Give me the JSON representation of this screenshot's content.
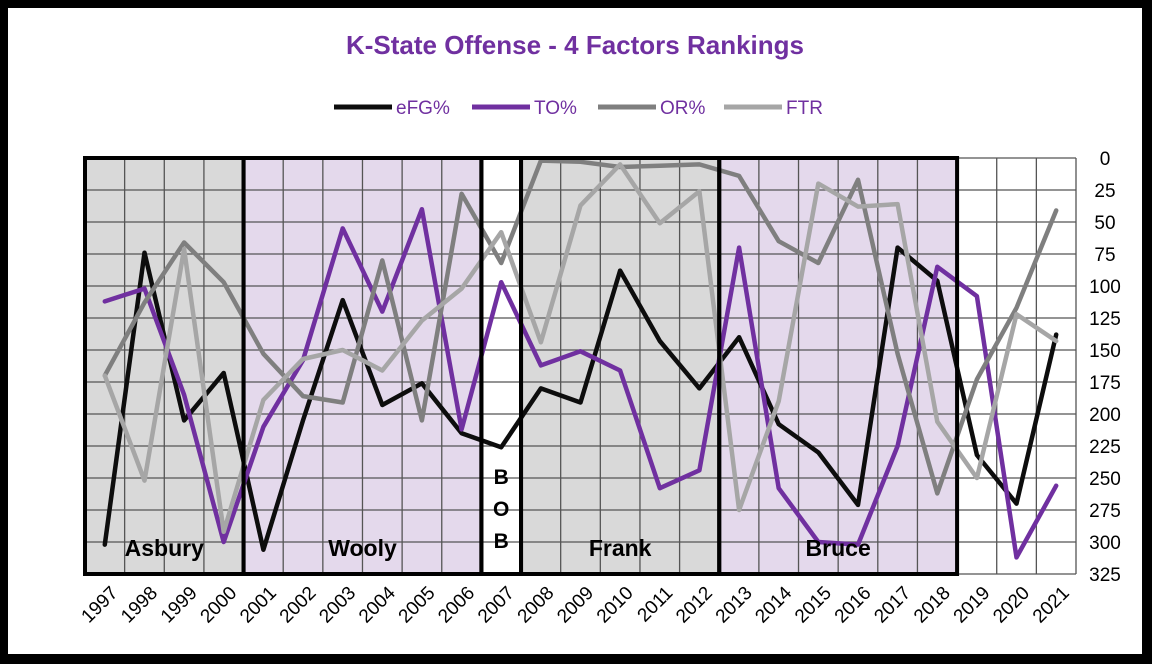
{
  "chart_data": {
    "type": "line",
    "title": "K-State Offense - 4 Factors Rankings",
    "x": [
      "1997",
      "1998",
      "1999",
      "2000",
      "2001",
      "2002",
      "2003",
      "2004",
      "2005",
      "2006",
      "2007",
      "2008",
      "2009",
      "2010",
      "2011",
      "2012",
      "2013",
      "2014",
      "2015",
      "2016",
      "2017",
      "2018",
      "2019",
      "2020",
      "2021"
    ],
    "ylim": [
      0,
      325
    ],
    "y_reversed": true,
    "y_ticks": [
      0,
      25,
      50,
      75,
      100,
      125,
      150,
      175,
      200,
      225,
      250,
      275,
      300,
      325
    ],
    "grid": true,
    "legend_position": "top",
    "series": [
      {
        "name": "eFG%",
        "color": "#0d0d0d",
        "values": [
          302,
          74,
          205,
          168,
          306,
          205,
          111,
          193,
          176,
          215,
          226,
          180,
          191,
          88,
          143,
          180,
          140,
          208,
          230,
          271,
          70,
          96,
          232,
          270,
          138
        ]
      },
      {
        "name": "TO%",
        "color": "#7030a0",
        "values": [
          112,
          102,
          185,
          300,
          210,
          158,
          55,
          120,
          40,
          212,
          97,
          162,
          151,
          166,
          258,
          244,
          70,
          258,
          300,
          302,
          225,
          85,
          108,
          312,
          256
        ]
      },
      {
        "name": "OR%",
        "color": "#7f7f7f",
        "values": [
          170,
          113,
          66,
          97,
          153,
          186,
          191,
          80,
          205,
          28,
          82,
          2,
          3,
          7,
          6,
          5,
          14,
          65,
          82,
          17,
          153,
          262,
          173,
          117,
          41
        ]
      },
      {
        "name": "FTR",
        "color": "#a6a6a6",
        "values": [
          170,
          252,
          71,
          292,
          189,
          157,
          150,
          166,
          127,
          102,
          58,
          144,
          37,
          5,
          51,
          26,
          275,
          190,
          20,
          38,
          36,
          206,
          250,
          122,
          143
        ]
      }
    ],
    "eras": [
      {
        "label": "Asbury",
        "start": 0,
        "end": 4,
        "fill": "#d9d9d9"
      },
      {
        "label": "Wooly",
        "start": 4,
        "end": 10,
        "fill": "#e4d9ec"
      },
      {
        "label": "B\nO\nB",
        "start": 10,
        "end": 11,
        "fill": "#ffffff"
      },
      {
        "label": "Frank",
        "start": 11,
        "end": 16,
        "fill": "#d9d9d9"
      },
      {
        "label": "Bruce",
        "start": 16,
        "end": 22,
        "fill": "#e4d9ec"
      }
    ]
  }
}
